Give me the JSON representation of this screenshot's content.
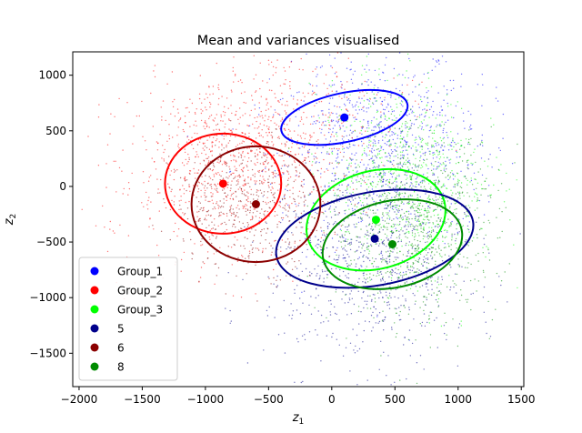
{
  "chart_data": {
    "type": "scatter",
    "title": "Mean and variances visualised",
    "xlabel": "z",
    "xlabel_sub": "1",
    "ylabel": "z",
    "ylabel_sub": "2",
    "xlim": [
      -2050,
      1520
    ],
    "ylim": [
      -1800,
      1210
    ],
    "xticks": [
      -2000,
      -1500,
      -1000,
      -500,
      0,
      500,
      1000,
      1500
    ],
    "yticks": [
      -1500,
      -1000,
      -500,
      0,
      500,
      1000
    ],
    "grid": false,
    "legend_position": "lower-left",
    "series": [
      {
        "name": "Group_1",
        "color": "#0000ff",
        "mean": [
          100,
          620
        ],
        "cloud": {
          "center": [
            400,
            350
          ],
          "spread": [
            420,
            430
          ],
          "angle_deg": 15,
          "count": 900
        },
        "ellipse": {
          "center": [
            100,
            620
          ],
          "rx": 510,
          "ry": 220,
          "angle_deg": 12
        }
      },
      {
        "name": "Group_2",
        "color": "#ff0000",
        "mean": [
          -860,
          25
        ],
        "cloud": {
          "center": [
            -700,
            300
          ],
          "spread": [
            520,
            380
          ],
          "angle_deg": 30,
          "count": 1100
        },
        "ellipse": {
          "center": [
            -860,
            25
          ],
          "rx": 460,
          "ry": 450,
          "angle_deg": 0
        }
      },
      {
        "name": "Group_3",
        "color": "#00ff00",
        "mean": [
          350,
          -300
        ],
        "cloud": {
          "center": [
            600,
            100
          ],
          "spread": [
            300,
            450
          ],
          "angle_deg": 10,
          "count": 700
        },
        "ellipse": {
          "center": [
            350,
            -300
          ],
          "rx": 560,
          "ry": 440,
          "angle_deg": 15
        }
      },
      {
        "name": "5",
        "color": "#00008b",
        "mean": [
          340,
          -470
        ],
        "cloud": {
          "center": [
            300,
            -700
          ],
          "spread": [
            400,
            450
          ],
          "angle_deg": 0,
          "count": 800
        },
        "ellipse": {
          "center": [
            340,
            -470
          ],
          "rx": 790,
          "ry": 420,
          "angle_deg": 10
        }
      },
      {
        "name": "6",
        "color": "#8b0000",
        "mean": [
          -600,
          -160
        ],
        "cloud": {
          "center": [
            -650,
            -150
          ],
          "spread": [
            300,
            300
          ],
          "angle_deg": 0,
          "count": 500
        },
        "ellipse": {
          "center": [
            -600,
            -160
          ],
          "rx": 510,
          "ry": 520,
          "angle_deg": 0
        }
      },
      {
        "name": "8",
        "color": "#008b00",
        "mean": [
          480,
          -520
        ],
        "cloud": {
          "center": [
            650,
            -350
          ],
          "spread": [
            330,
            420
          ],
          "angle_deg": 0,
          "count": 800
        },
        "ellipse": {
          "center": [
            480,
            -520
          ],
          "rx": 560,
          "ry": 390,
          "angle_deg": 12
        }
      }
    ]
  }
}
